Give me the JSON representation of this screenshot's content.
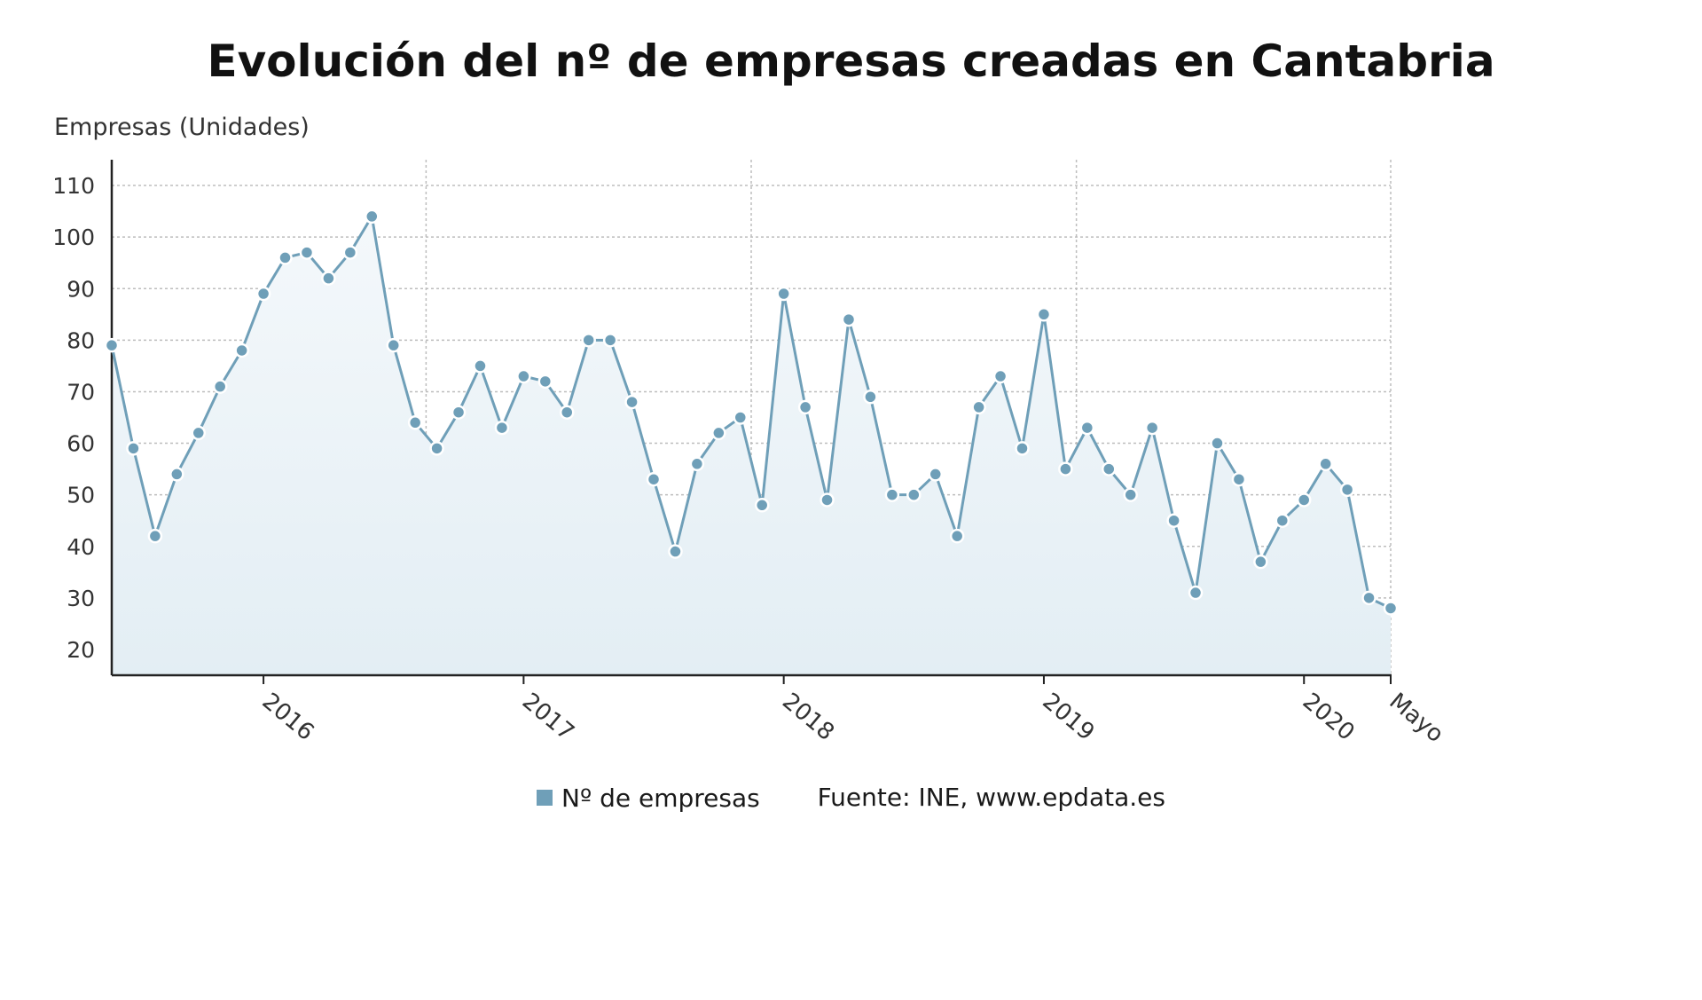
{
  "chart_data": {
    "type": "line",
    "title": "Evolución del nº de empresas creadas en Cantabria",
    "ylabel": "Empresas (Unidades)",
    "xlabel": "",
    "ylim": [
      15,
      115
    ],
    "yticks": [
      20,
      30,
      40,
      50,
      60,
      70,
      80,
      90,
      100,
      110
    ],
    "x_tick_labels": [
      {
        "month_index": 7,
        "label": "2016"
      },
      {
        "month_index": 19,
        "label": "2017"
      },
      {
        "month_index": 31,
        "label": "2018"
      },
      {
        "month_index": 43,
        "label": "2019"
      },
      {
        "month_index": 55,
        "label": "2020"
      },
      {
        "month_index": 59,
        "label": "Mayo"
      }
    ],
    "series": [
      {
        "name": "Nº de empresas",
        "color": "#6f9fb8",
        "values": [
          79,
          59,
          42,
          54,
          62,
          71,
          78,
          89,
          96,
          97,
          92,
          97,
          104,
          79,
          64,
          59,
          66,
          75,
          63,
          73,
          72,
          66,
          80,
          80,
          68,
          53,
          39,
          56,
          62,
          65,
          48,
          89,
          67,
          49,
          84,
          69,
          50,
          50,
          54,
          42,
          67,
          73,
          59,
          85,
          55,
          63,
          55,
          50,
          63,
          45,
          31,
          60,
          53,
          37,
          45,
          49,
          56,
          51,
          30,
          28
        ]
      }
    ],
    "grid": true,
    "legend_position": "bottom",
    "source": "Fuente: INE, www.epdata.es"
  },
  "colors": {
    "line": "#6f9fb8",
    "area_top": "#f4f8fb",
    "area_bottom": "#e3eef4",
    "grid": "#bdbdbd",
    "axis": "#222222"
  }
}
